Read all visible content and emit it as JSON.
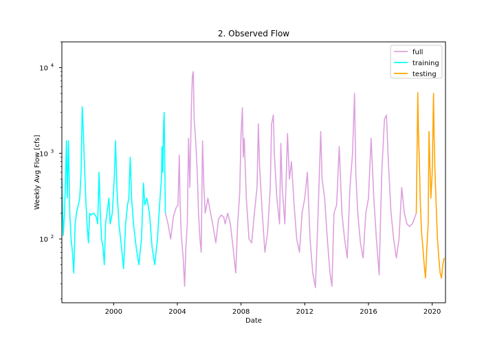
{
  "chart_data": {
    "type": "line",
    "title": "2. Observed Flow",
    "xlabel": "Date",
    "ylabel": "Weekly Avg Flow [cfs]",
    "x_range": [
      "1996-10-01",
      "2020-11-01"
    ],
    "yscale": "log",
    "ylim": [
      18,
      20000
    ],
    "x_ticks": [
      {
        "date": "2000-01-01",
        "label": "2000"
      },
      {
        "date": "2004-01-01",
        "label": "2004"
      },
      {
        "date": "2008-01-01",
        "label": "2008"
      },
      {
        "date": "2012-01-01",
        "label": "2012"
      },
      {
        "date": "2016-01-01",
        "label": "2016"
      },
      {
        "date": "2020-01-01",
        "label": "2020"
      }
    ],
    "y_ticks": [
      {
        "value": 100,
        "label": "10",
        "exp": "2"
      },
      {
        "value": 1000,
        "label": "10",
        "exp": "3"
      },
      {
        "value": 10000,
        "label": "10",
        "exp": "4"
      }
    ],
    "grid": false,
    "legend_position": "top-right",
    "series": [
      {
        "name": "full",
        "color": "#dda0dd",
        "points": [
          [
            "2003-04-01",
            200
          ],
          [
            "2003-06-01",
            150
          ],
          [
            "2003-08-01",
            100
          ],
          [
            "2003-10-01",
            180
          ],
          [
            "2003-12-01",
            230
          ],
          [
            "2004-01-15",
            250
          ],
          [
            "2004-02-15",
            950
          ],
          [
            "2004-03-01",
            300
          ],
          [
            "2004-04-01",
            110
          ],
          [
            "2004-05-15",
            60
          ],
          [
            "2004-06-15",
            28
          ],
          [
            "2004-07-15",
            80
          ],
          [
            "2004-08-15",
            150
          ],
          [
            "2004-09-15",
            1500
          ],
          [
            "2004-10-15",
            400
          ],
          [
            "2004-11-15",
            3000
          ],
          [
            "2004-12-10",
            8000
          ],
          [
            "2005-01-01",
            9000
          ],
          [
            "2005-01-20",
            2500
          ],
          [
            "2005-02-10",
            1800
          ],
          [
            "2005-03-01",
            1300
          ],
          [
            "2005-04-01",
            600
          ],
          [
            "2005-05-01",
            200
          ],
          [
            "2005-06-01",
            100
          ],
          [
            "2005-07-01",
            70
          ],
          [
            "2005-08-01",
            1400
          ],
          [
            "2005-09-01",
            400
          ],
          [
            "2005-10-01",
            200
          ],
          [
            "2005-12-01",
            300
          ],
          [
            "2006-02-01",
            200
          ],
          [
            "2006-04-01",
            140
          ],
          [
            "2006-06-01",
            90
          ],
          [
            "2006-08-01",
            170
          ],
          [
            "2006-10-01",
            190
          ],
          [
            "2006-12-01",
            180
          ],
          [
            "2007-01-01",
            150
          ],
          [
            "2007-03-01",
            200
          ],
          [
            "2007-05-01",
            150
          ],
          [
            "2007-07-01",
            80
          ],
          [
            "2007-09-01",
            40
          ],
          [
            "2007-10-15",
            150
          ],
          [
            "2007-12-01",
            350
          ],
          [
            "2008-01-01",
            1700
          ],
          [
            "2008-02-01",
            3400
          ],
          [
            "2008-02-20",
            900
          ],
          [
            "2008-03-15",
            1500
          ],
          [
            "2008-05-01",
            300
          ],
          [
            "2008-07-01",
            100
          ],
          [
            "2008-09-01",
            90
          ],
          [
            "2008-11-01",
            200
          ],
          [
            "2009-01-01",
            400
          ],
          [
            "2009-02-01",
            2200
          ],
          [
            "2009-03-01",
            700
          ],
          [
            "2009-05-01",
            200
          ],
          [
            "2009-07-01",
            70
          ],
          [
            "2009-09-01",
            120
          ],
          [
            "2009-11-01",
            400
          ],
          [
            "2009-12-01",
            2200
          ],
          [
            "2010-01-10",
            2800
          ],
          [
            "2010-02-01",
            1000
          ],
          [
            "2010-04-01",
            300
          ],
          [
            "2010-06-01",
            150
          ],
          [
            "2010-07-01",
            1300
          ],
          [
            "2010-08-01",
            400
          ],
          [
            "2010-10-01",
            150
          ],
          [
            "2010-12-01",
            1700
          ],
          [
            "2011-01-15",
            500
          ],
          [
            "2011-03-01",
            800
          ],
          [
            "2011-05-01",
            250
          ],
          [
            "2011-07-01",
            100
          ],
          [
            "2011-09-01",
            70
          ],
          [
            "2011-11-01",
            200
          ],
          [
            "2012-01-01",
            300
          ],
          [
            "2012-03-01",
            600
          ],
          [
            "2012-05-01",
            100
          ],
          [
            "2012-07-01",
            40
          ],
          [
            "2012-09-01",
            27
          ],
          [
            "2012-11-01",
            200
          ],
          [
            "2013-01-01",
            1800
          ],
          [
            "2013-02-01",
            500
          ],
          [
            "2013-04-01",
            300
          ],
          [
            "2013-06-01",
            100
          ],
          [
            "2013-08-01",
            40
          ],
          [
            "2013-09-15",
            28
          ],
          [
            "2013-11-01",
            200
          ],
          [
            "2014-01-01",
            250
          ],
          [
            "2014-03-01",
            1200
          ],
          [
            "2014-05-01",
            200
          ],
          [
            "2014-07-01",
            100
          ],
          [
            "2014-09-01",
            60
          ],
          [
            "2014-11-01",
            400
          ],
          [
            "2015-01-01",
            1000
          ],
          [
            "2015-02-15",
            5000
          ],
          [
            "2015-03-15",
            600
          ],
          [
            "2015-05-01",
            200
          ],
          [
            "2015-07-01",
            90
          ],
          [
            "2015-09-01",
            60
          ],
          [
            "2015-11-01",
            200
          ],
          [
            "2016-01-01",
            300
          ],
          [
            "2016-03-01",
            1500
          ],
          [
            "2016-05-01",
            300
          ],
          [
            "2016-07-01",
            100
          ],
          [
            "2016-09-01",
            38
          ],
          [
            "2016-11-01",
            600
          ],
          [
            "2017-01-01",
            2500
          ],
          [
            "2017-02-15",
            2800
          ],
          [
            "2017-04-01",
            800
          ],
          [
            "2017-06-01",
            200
          ],
          [
            "2017-08-01",
            100
          ],
          [
            "2017-10-01",
            60
          ],
          [
            "2017-12-01",
            100
          ],
          [
            "2018-02-01",
            400
          ],
          [
            "2018-04-01",
            200
          ],
          [
            "2018-06-01",
            150
          ],
          [
            "2018-08-01",
            140
          ],
          [
            "2018-10-01",
            150
          ],
          [
            "2018-12-01",
            180
          ],
          [
            "2019-01-01",
            200
          ]
        ]
      },
      {
        "name": "training",
        "color": "#00ffff",
        "points": [
          [
            "1996-10-01",
            500
          ],
          [
            "1996-11-01",
            110
          ],
          [
            "1996-12-01",
            200
          ],
          [
            "1997-01-15",
            1400
          ],
          [
            "1997-02-01",
            300
          ],
          [
            "1997-03-01",
            1400
          ],
          [
            "1997-04-01",
            200
          ],
          [
            "1997-05-01",
            100
          ],
          [
            "1997-06-01",
            70
          ],
          [
            "1997-07-01",
            40
          ],
          [
            "1997-08-01",
            150
          ],
          [
            "1997-09-01",
            200
          ],
          [
            "1997-10-15",
            250
          ],
          [
            "1997-11-15",
            300
          ],
          [
            "1997-12-15",
            600
          ],
          [
            "1998-01-10",
            3500
          ],
          [
            "1998-02-01",
            2000
          ],
          [
            "1998-03-01",
            800
          ],
          [
            "1998-04-01",
            300
          ],
          [
            "1998-05-01",
            150
          ],
          [
            "1998-06-01",
            90
          ],
          [
            "1998-07-01",
            200
          ],
          [
            "1998-08-01",
            190
          ],
          [
            "1998-10-01",
            200
          ],
          [
            "1998-12-01",
            180
          ],
          [
            "1999-01-01",
            150
          ],
          [
            "1999-02-01",
            600
          ],
          [
            "1999-03-01",
            200
          ],
          [
            "1999-04-01",
            100
          ],
          [
            "1999-05-01",
            80
          ],
          [
            "1999-06-01",
            50
          ],
          [
            "1999-07-01",
            150
          ],
          [
            "1999-08-01",
            200
          ],
          [
            "1999-09-15",
            300
          ],
          [
            "1999-10-15",
            150
          ],
          [
            "1999-12-01",
            200
          ],
          [
            "2000-01-15",
            500
          ],
          [
            "2000-02-15",
            1400
          ],
          [
            "2000-03-15",
            400
          ],
          [
            "2000-05-01",
            150
          ],
          [
            "2000-07-01",
            80
          ],
          [
            "2000-08-15",
            45
          ],
          [
            "2000-10-01",
            150
          ],
          [
            "2000-11-15",
            250
          ],
          [
            "2000-12-15",
            300
          ],
          [
            "2001-01-15",
            900
          ],
          [
            "2001-02-15",
            300
          ],
          [
            "2001-04-01",
            150
          ],
          [
            "2001-06-01",
            80
          ],
          [
            "2001-08-01",
            50
          ],
          [
            "2001-10-01",
            100
          ],
          [
            "2001-11-15",
            450
          ],
          [
            "2001-12-15",
            250
          ],
          [
            "2002-02-01",
            300
          ],
          [
            "2002-04-01",
            200
          ],
          [
            "2002-06-01",
            80
          ],
          [
            "2002-08-01",
            50
          ],
          [
            "2002-10-01",
            100
          ],
          [
            "2002-12-01",
            300
          ],
          [
            "2003-01-01",
            500
          ],
          [
            "2003-01-15",
            1200
          ],
          [
            "2003-02-01",
            600
          ],
          [
            "2003-02-20",
            2200
          ],
          [
            "2003-03-05",
            3000
          ],
          [
            "2003-03-20",
            600
          ],
          [
            "2003-04-01",
            200
          ]
        ]
      },
      {
        "name": "testing",
        "color": "#ffa500",
        "points": [
          [
            "2019-01-01",
            200
          ],
          [
            "2019-01-20",
            1100
          ],
          [
            "2019-02-05",
            5100
          ],
          [
            "2019-02-20",
            1700
          ],
          [
            "2019-03-10",
            900
          ],
          [
            "2019-04-01",
            300
          ],
          [
            "2019-05-01",
            120
          ],
          [
            "2019-06-01",
            80
          ],
          [
            "2019-07-01",
            50
          ],
          [
            "2019-08-01",
            35
          ],
          [
            "2019-09-01",
            80
          ],
          [
            "2019-10-01",
            150
          ],
          [
            "2019-10-20",
            1800
          ],
          [
            "2019-11-10",
            700
          ],
          [
            "2019-12-01",
            300
          ],
          [
            "2020-01-01",
            600
          ],
          [
            "2020-02-01",
            5000
          ],
          [
            "2020-02-15",
            1500
          ],
          [
            "2020-03-01",
            700
          ],
          [
            "2020-04-01",
            250
          ],
          [
            "2020-05-01",
            100
          ],
          [
            "2020-06-01",
            60
          ],
          [
            "2020-07-01",
            40
          ],
          [
            "2020-08-01",
            35
          ],
          [
            "2020-09-01",
            50
          ],
          [
            "2020-10-01",
            60
          ]
        ]
      }
    ]
  }
}
